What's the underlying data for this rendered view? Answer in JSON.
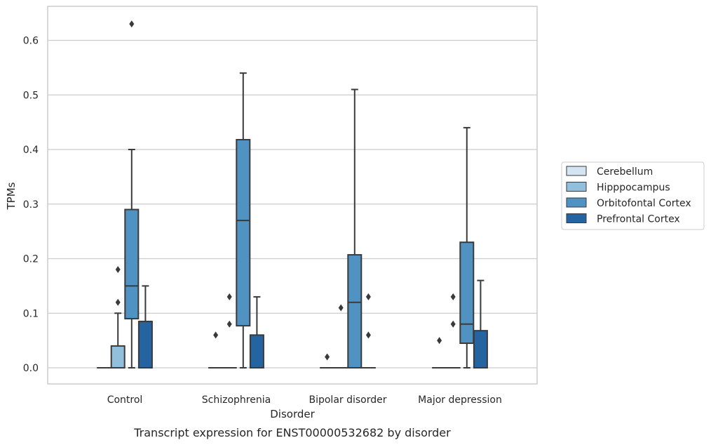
{
  "chart_data": {
    "type": "box",
    "title": "Transcript expression for ENST00000532682 by disorder",
    "xlabel": "Disorder",
    "ylabel": "TPMs",
    "ylim": [
      -0.03,
      0.66
    ],
    "yticks": [
      0.0,
      0.1,
      0.2,
      0.3,
      0.4,
      0.5,
      0.6
    ],
    "ytick_labels": [
      "0.0",
      "0.1",
      "0.2",
      "0.3",
      "0.4",
      "0.5",
      "0.6"
    ],
    "grid": "horizontal",
    "legend_position": "right",
    "categories": [
      "Control",
      "Schizophrenia",
      "Bipolar disorder",
      "Major depression"
    ],
    "series": [
      {
        "name": "Cerebellum",
        "color": "#d3e4f3",
        "boxes": [
          {
            "whislo": 0,
            "q1": 0,
            "med": 0,
            "q3": 0,
            "whishi": 0,
            "fliers": []
          },
          {
            "whislo": 0,
            "q1": 0,
            "med": 0,
            "q3": 0,
            "whishi": 0,
            "fliers": [
              0.06
            ]
          },
          {
            "whislo": 0,
            "q1": 0,
            "med": 0,
            "q3": 0,
            "whishi": 0,
            "fliers": [
              0.02
            ]
          },
          {
            "whislo": 0,
            "q1": 0,
            "med": 0,
            "q3": 0,
            "whishi": 0,
            "fliers": [
              0.05
            ]
          }
        ]
      },
      {
        "name": "Hipppocampus",
        "color": "#92bfdc",
        "boxes": [
          {
            "whislo": 0,
            "q1": 0,
            "med": 0,
            "q3": 0.04,
            "whishi": 0.1,
            "fliers": [
              0.12,
              0.18
            ]
          },
          {
            "whislo": 0,
            "q1": 0,
            "med": 0,
            "q3": 0,
            "whishi": 0,
            "fliers": [
              0.08,
              0.13
            ]
          },
          {
            "whislo": 0,
            "q1": 0,
            "med": 0,
            "q3": 0,
            "whishi": 0,
            "fliers": [
              0.11
            ]
          },
          {
            "whislo": 0,
            "q1": 0,
            "med": 0,
            "q3": 0,
            "whishi": 0,
            "fliers": [
              0.08,
              0.13
            ]
          }
        ]
      },
      {
        "name": "Orbitofontal Cortex",
        "color": "#5093c3",
        "boxes": [
          {
            "whislo": 0,
            "q1": 0.09,
            "med": 0.15,
            "q3": 0.29,
            "whishi": 0.4,
            "fliers": [
              0.63
            ]
          },
          {
            "whislo": 0,
            "q1": 0.077,
            "med": 0.27,
            "q3": 0.418,
            "whishi": 0.54,
            "fliers": []
          },
          {
            "whislo": 0,
            "q1": 0,
            "med": 0.12,
            "q3": 0.207,
            "whishi": 0.51,
            "fliers": []
          },
          {
            "whislo": 0,
            "q1": 0.045,
            "med": 0.08,
            "q3": 0.23,
            "whishi": 0.44,
            "fliers": []
          }
        ]
      },
      {
        "name": "Prefrontal Cortex",
        "color": "#2464a1",
        "boxes": [
          {
            "whislo": 0,
            "q1": 0,
            "med": 0,
            "q3": 0.085,
            "whishi": 0.15,
            "fliers": []
          },
          {
            "whislo": 0,
            "q1": 0,
            "med": 0,
            "q3": 0.06,
            "whishi": 0.13,
            "fliers": []
          },
          {
            "whislo": 0,
            "q1": 0,
            "med": 0,
            "q3": 0,
            "whishi": 0,
            "fliers": [
              0.06,
              0.13
            ]
          },
          {
            "whislo": 0,
            "q1": 0,
            "med": 0,
            "q3": 0.068,
            "whishi": 0.16,
            "fliers": []
          }
        ]
      }
    ]
  }
}
